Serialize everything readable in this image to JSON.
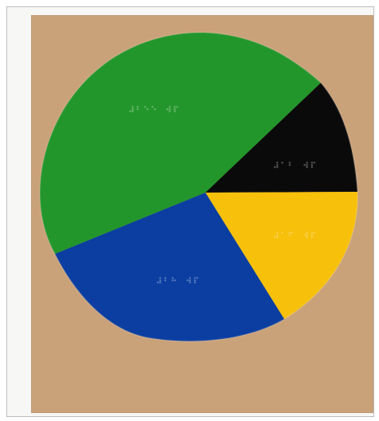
{
  "colors": {
    "background": "#f7f7f5",
    "cardboard": "#caa27a",
    "green": "#23962b",
    "black": "#0a0a0a",
    "yellow": "#f7c00b",
    "blue": "#0b3ea0"
  },
  "slices": [
    {
      "name": "green",
      "color": "#23962b",
      "fraction": 0.44
    },
    {
      "name": "black",
      "color": "#0a0a0a",
      "fraction": 0.12
    },
    {
      "name": "yellow",
      "color": "#f7c00b",
      "fraction": 0.16
    },
    {
      "name": "blue",
      "color": "#0b3ea0",
      "fraction": 0.28
    }
  ]
}
